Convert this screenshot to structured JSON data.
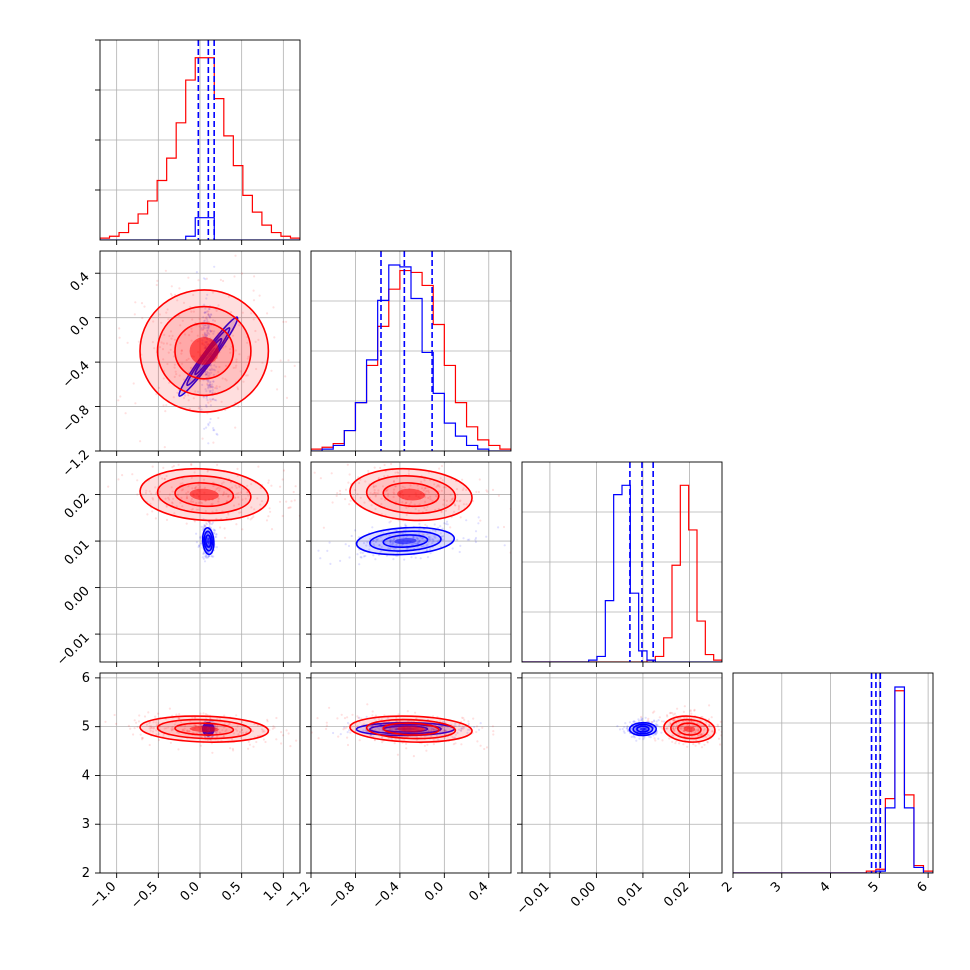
{
  "colors": {
    "red": "#ff0000",
    "blue": "#0000ff",
    "grid": "#b0b0b0",
    "axis": "#000000"
  },
  "chart_data": {
    "type": "corner",
    "title": "",
    "grid": true,
    "parameters": [
      {
        "name": "",
        "range": [
          -1.2,
          1.2
        ],
        "ticks": [
          -1.0,
          -0.5,
          0.0,
          0.5,
          1.0
        ],
        "tick_labels": [
          "−1.0",
          "−0.5",
          "0.0",
          "0.5",
          "1.0"
        ]
      },
      {
        "name": "",
        "range": [
          -1.2,
          0.6
        ],
        "ticks": [
          -1.2,
          -0.8,
          -0.4,
          0.0,
          0.4
        ],
        "tick_labels": [
          "−1.2",
          "−0.8",
          "−0.4",
          "0.0",
          "0.4"
        ]
      },
      {
        "name": "",
        "range": [
          -0.016,
          0.027
        ],
        "ticks": [
          -0.01,
          0.0,
          0.01,
          0.02
        ],
        "tick_labels": [
          "−0.01",
          "0.00",
          "0.01",
          "0.02"
        ]
      },
      {
        "name": "",
        "range": [
          2,
          6.1
        ],
        "ticks": [
          2,
          3,
          4,
          5,
          6
        ],
        "tick_labels": [
          "2",
          "3",
          "4",
          "5",
          "6"
        ]
      }
    ],
    "series": [
      {
        "color": "red",
        "mean": [
          0.05,
          -0.3,
          0.02,
          4.95
        ],
        "std": [
          0.35,
          0.25,
          0.0025,
          0.12
        ],
        "corr": [
          0.0,
          -0.25,
          -0.25
        ],
        "hist": [
          [
            0.01,
            0.02,
            0.04,
            0.09,
            0.14,
            0.21,
            0.32,
            0.44,
            0.63,
            0.86,
            0.98,
            0.98,
            0.76,
            0.56,
            0.4,
            0.24,
            0.15,
            0.08,
            0.04,
            0.02,
            0.01
          ],
          [
            0.01,
            0.02,
            0.04,
            0.11,
            0.26,
            0.46,
            0.67,
            0.87,
            0.97,
            0.96,
            0.89,
            0.68,
            0.46,
            0.26,
            0.13,
            0.06,
            0.03,
            0.01
          ],
          [
            0.0,
            0.0,
            0.0,
            0.0,
            0.0,
            0.0,
            0.0,
            0.0,
            0.0,
            0.0,
            0.0,
            0.0,
            0.0,
            0.0,
            0.0,
            0.01,
            0.03,
            0.13,
            0.52,
            0.95,
            0.71,
            0.22,
            0.04,
            0.01
          ],
          [
            0.0,
            0.0,
            0.0,
            0.0,
            0.0,
            0.0,
            0.0,
            0.0,
            0.0,
            0.0,
            0.0,
            0.0,
            0.0,
            0.0,
            0.01,
            0.02,
            0.4,
            0.98,
            0.42,
            0.04,
            0.01
          ]
        ]
      },
      {
        "color": "blue",
        "mean": [
          0.1,
          -0.35,
          0.01,
          4.95
        ],
        "std": [
          0.03,
          0.2,
          0.0013,
          0.06
        ],
        "corr": [
          -0.2,
          0.35,
          0.05
        ],
        "hist": [
          [
            0.0,
            0.0,
            0.0,
            0.0,
            0.0,
            0.0,
            0.0,
            0.0,
            0.0,
            0.02,
            0.12,
            0.12,
            0.0,
            0.0,
            0.0,
            0.0,
            0.0,
            0.0,
            0.0,
            0.0,
            0.0
          ],
          [
            0.0,
            0.01,
            0.03,
            0.11,
            0.26,
            0.49,
            0.81,
            1.0,
            0.99,
            0.82,
            0.53,
            0.31,
            0.15,
            0.08,
            0.03,
            0.01,
            0.0,
            0.0
          ],
          [
            0.0,
            0.0,
            0.0,
            0.0,
            0.0,
            0.0,
            0.0,
            0.0,
            0.01,
            0.03,
            0.33,
            0.9,
            0.95,
            0.37,
            0.06,
            0.01,
            0.0,
            0.0,
            0.0,
            0.0,
            0.0,
            0.0,
            0.0,
            0.0
          ],
          [
            0.0,
            0.0,
            0.0,
            0.0,
            0.0,
            0.0,
            0.0,
            0.0,
            0.0,
            0.0,
            0.0,
            0.0,
            0.0,
            0.0,
            0.0,
            0.01,
            0.35,
            1.0,
            0.35,
            0.03,
            0.0
          ]
        ]
      }
    ],
    "quantile_lines": [
      [
        -0.02,
        0.1,
        0.17
      ],
      [
        -0.57,
        -0.36,
        -0.11
      ],
      [
        0.0072,
        0.0098,
        0.0122
      ],
      [
        4.84,
        4.93,
        5.02
      ]
    ]
  }
}
